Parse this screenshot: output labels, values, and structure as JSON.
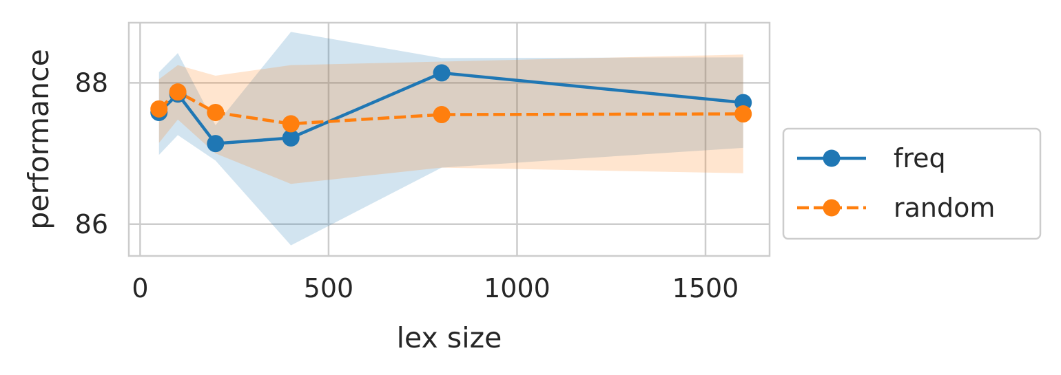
{
  "chart_data": {
    "type": "line",
    "title": "",
    "xlabel": "lex size",
    "ylabel": "performance",
    "xlim": [
      -30,
      1670
    ],
    "ylim": [
      85.55,
      88.85
    ],
    "xticks": [
      0,
      500,
      1000,
      1500
    ],
    "xtick_labels": [
      "0",
      "500",
      "1000",
      "1500"
    ],
    "yticks": [
      86,
      88
    ],
    "ytick_labels": [
      "86",
      "88"
    ],
    "grid": true,
    "legend_position": "outside-right",
    "series": [
      {
        "name": "freq",
        "color": "#1f77b4",
        "linestyle": "solid",
        "marker": "circle",
        "x": [
          50,
          100,
          200,
          400,
          800,
          1600
        ],
        "y": [
          87.58,
          87.84,
          87.14,
          87.22,
          88.14,
          87.72
        ],
        "band_lower": [
          86.98,
          87.26,
          86.9,
          85.7,
          86.8,
          87.08
        ],
        "band_upper": [
          88.15,
          88.42,
          87.4,
          88.72,
          88.35,
          88.36
        ]
      },
      {
        "name": "random",
        "color": "#ff7f0e",
        "linestyle": "dashed",
        "marker": "circle",
        "x": [
          50,
          100,
          200,
          400,
          800,
          1600
        ],
        "y": [
          87.63,
          87.87,
          87.58,
          87.42,
          87.55,
          87.56
        ],
        "band_lower": [
          87.15,
          87.48,
          87.0,
          86.57,
          86.8,
          86.72
        ],
        "band_upper": [
          88.05,
          88.25,
          88.1,
          88.25,
          88.3,
          88.4
        ]
      }
    ]
  }
}
